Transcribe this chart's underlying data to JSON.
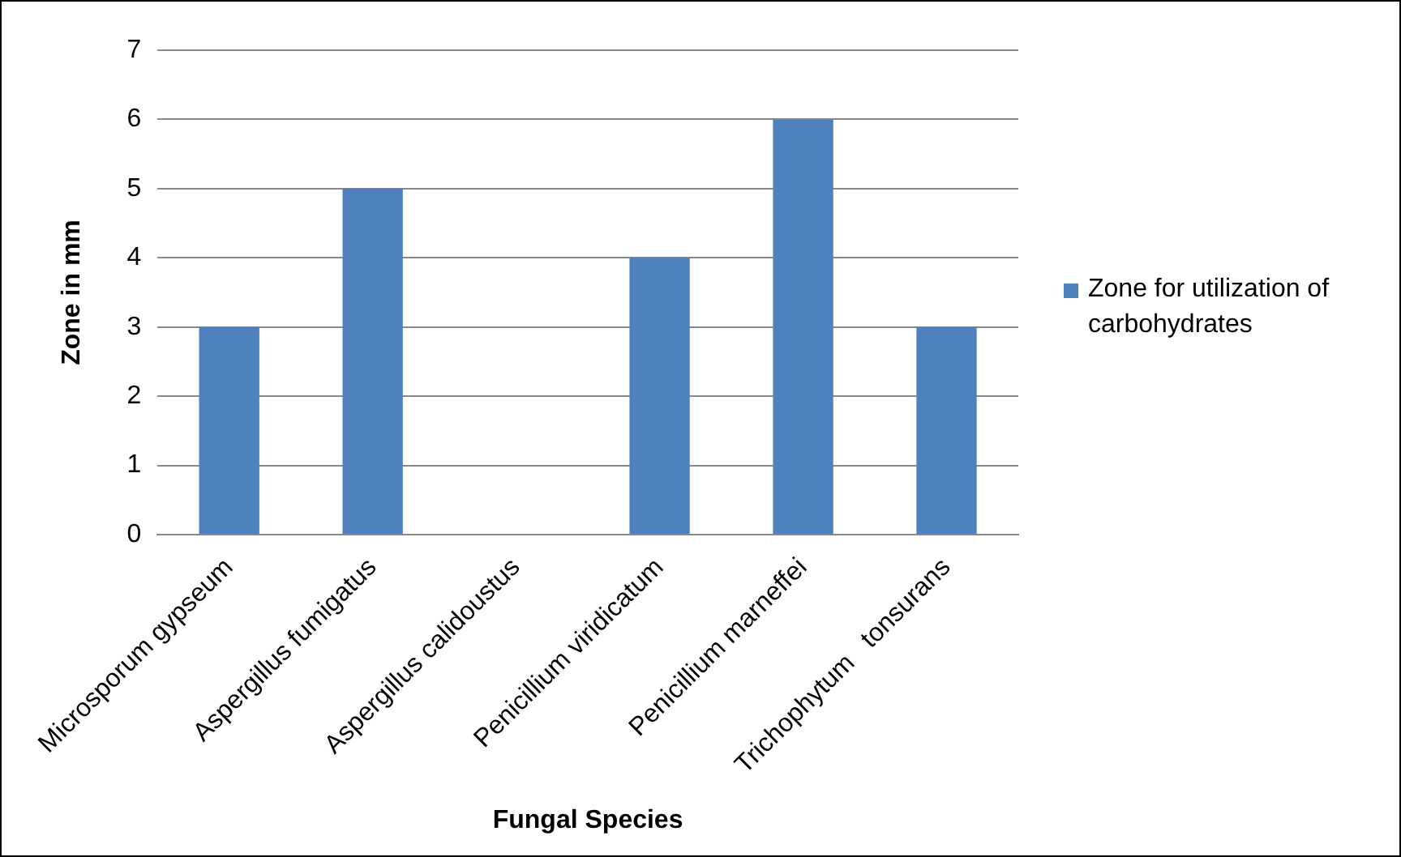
{
  "chart_data": {
    "type": "bar",
    "xlabel": "Fungal Species",
    "ylabel": "Zone in mm",
    "categories": [
      "Microsporum gypseum",
      "Aspergillus fumigatus",
      "Aspergillus calidoustus",
      "Penicillium viridicatum",
      "Penicillium marneffei",
      "Trichophytum   tonsurans"
    ],
    "series": [
      {
        "name": "Zone for utilization of carbohydrates",
        "color": "#4f81bd",
        "values": [
          3,
          5,
          0,
          4,
          6,
          3
        ]
      }
    ],
    "ylim": [
      0,
      7
    ],
    "yticks": [
      0,
      1,
      2,
      3,
      4,
      5,
      6,
      7
    ],
    "grid": "y",
    "legend": "right"
  }
}
